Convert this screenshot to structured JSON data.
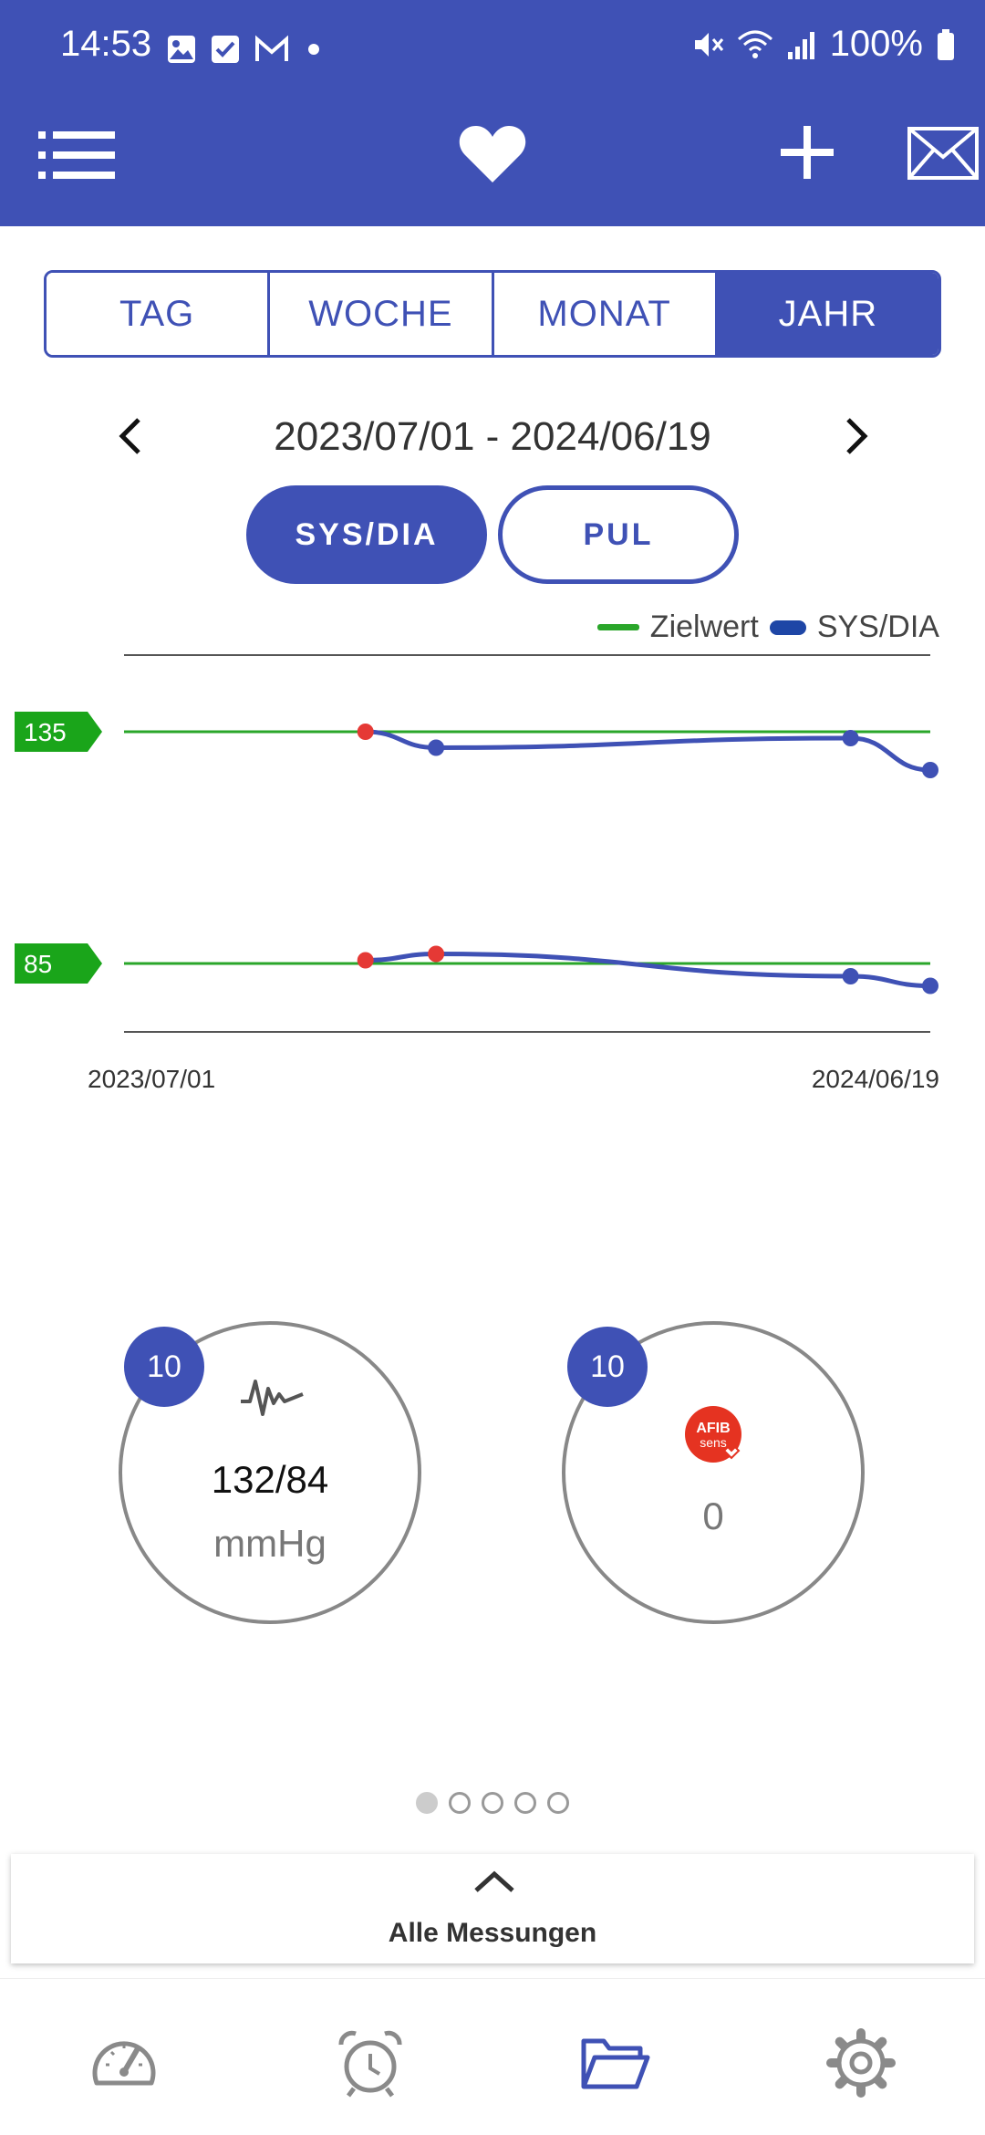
{
  "status_bar": {
    "time": "14:53",
    "battery": "100%",
    "icons_left": [
      "image-icon",
      "checkbox-icon",
      "gmail-icon",
      "dot-icon"
    ],
    "icons_right": [
      "mute-icon",
      "wifi-icon",
      "signal-icon",
      "battery-icon"
    ]
  },
  "app_bar": {
    "icons": [
      "menu-list-icon",
      "heart-icon",
      "add-icon",
      "mail-icon"
    ],
    "color": "#3f51b5"
  },
  "period_tabs": {
    "items": [
      "TAG",
      "WOCHE",
      "MONAT",
      "JAHR"
    ],
    "selected": "JAHR"
  },
  "date_range": {
    "text": "2023/07/01 - 2024/06/19"
  },
  "measure_toggle": {
    "sysdia_label": "SYS/DIA",
    "pul_label": "PUL",
    "selected": "SYS/DIA"
  },
  "legend": {
    "target_label": "Zielwert",
    "series_label": "SYS/DIA",
    "target_color": "#2aa62a",
    "series_color": "#1e46a6"
  },
  "chart_data": {
    "type": "line",
    "x_start_label": "2023/07/01",
    "x_end_label": "2024/06/19",
    "target_lines": [
      {
        "label": "135",
        "value": 135
      },
      {
        "label": "85",
        "value": 85
      }
    ],
    "series": [
      {
        "name": "SYS",
        "points": [
          {
            "x": "2023/10/15",
            "y": 135,
            "flag": "red"
          },
          {
            "x": "2023/11/15",
            "y": 130,
            "flag": "blue"
          },
          {
            "x": "2024/05/15",
            "y": 133,
            "flag": "blue"
          },
          {
            "x": "2024/06/19",
            "y": 123,
            "flag": "blue"
          }
        ]
      },
      {
        "name": "DIA",
        "points": [
          {
            "x": "2023/10/15",
            "y": 86,
            "flag": "red"
          },
          {
            "x": "2023/11/15",
            "y": 88,
            "flag": "red"
          },
          {
            "x": "2024/05/15",
            "y": 81,
            "flag": "blue"
          },
          {
            "x": "2024/06/19",
            "y": 78,
            "flag": "blue"
          }
        ]
      }
    ],
    "red_color": "#e53935",
    "blue_color": "#3f51b5"
  },
  "summary": {
    "bp": {
      "count": "10",
      "value": "132/84",
      "unit": "mmHg"
    },
    "afib": {
      "count": "10",
      "logo_top": "AFIB",
      "logo_bottom": "sens",
      "value": "0"
    }
  },
  "pager": {
    "count": 5,
    "active": 0
  },
  "all_measurements": {
    "label": "Alle Messungen"
  },
  "bottom_nav": {
    "items": [
      "gauge-icon",
      "alarm-clock-icon",
      "folder-icon",
      "settings-gear-icon"
    ],
    "selected": "folder-icon"
  }
}
